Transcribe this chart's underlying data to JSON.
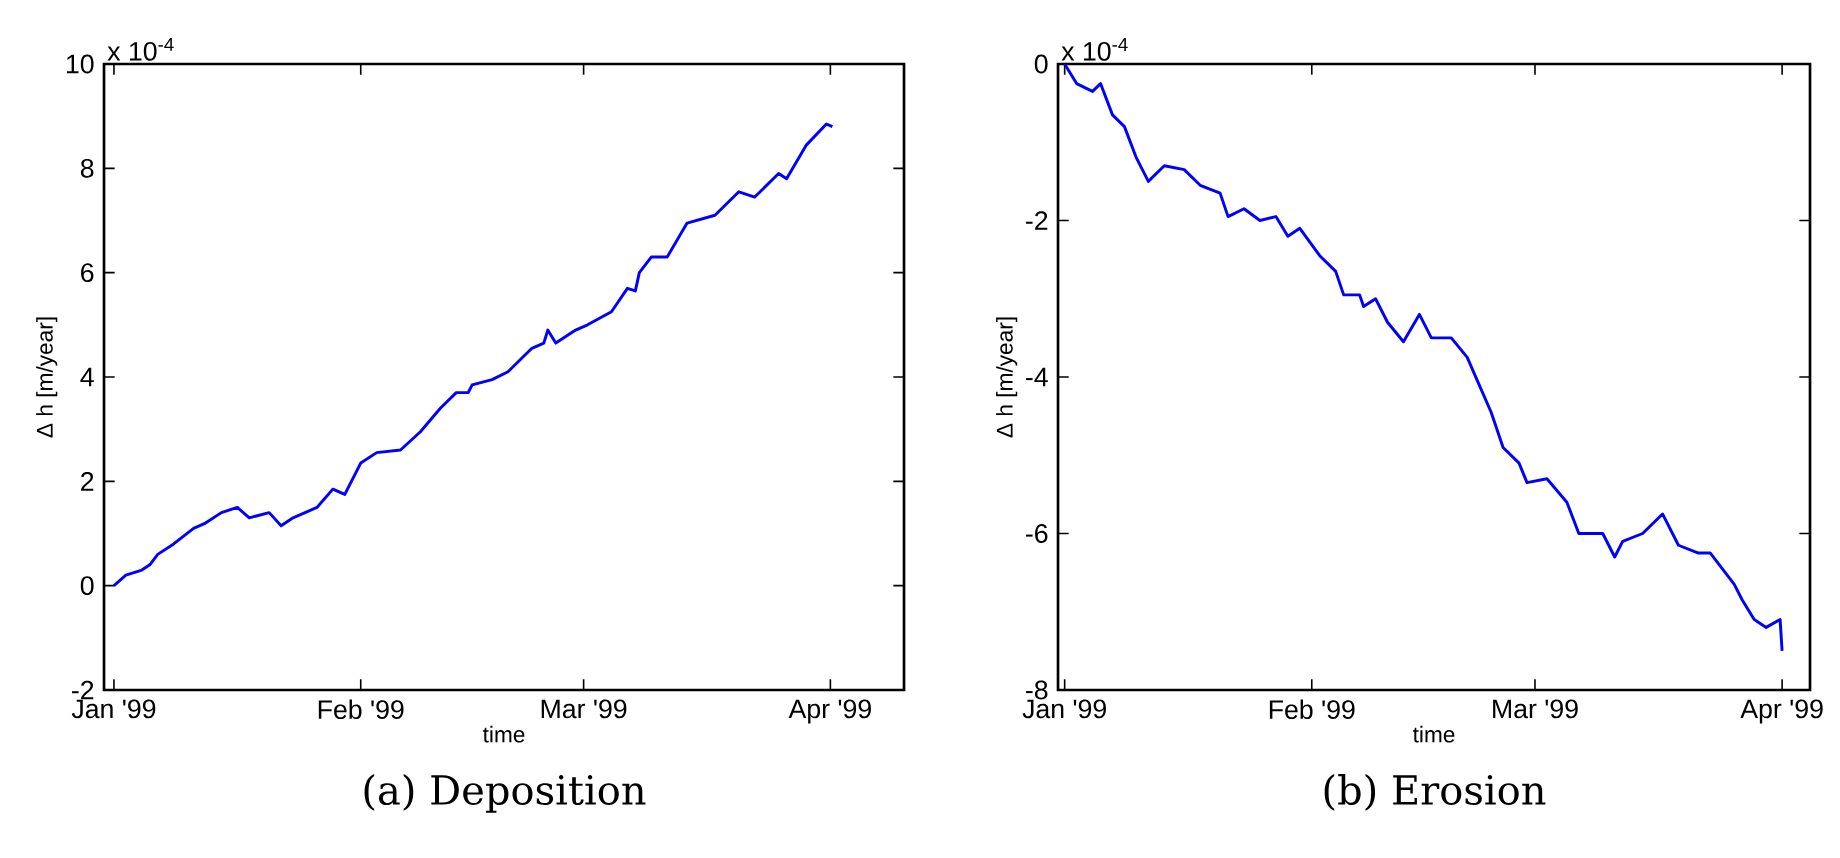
{
  "chart_data": [
    {
      "type": "line",
      "title": "(a) Deposition",
      "xlabel": "time",
      "ylabel": "Δ h [m/year]",
      "annotations": [
        "x 10$^{-4}$"
      ],
      "x": [
        "1999-01-01",
        "1999-01-02T12:00",
        "1999-01-04T12:00",
        "1999-01-05T12:00",
        "1999-01-06T12:00",
        "1999-01-08T12:00",
        "1999-01-11",
        "1999-01-12T12:00",
        "1999-01-14T12:00",
        "1999-01-16T12:00",
        "1999-01-18",
        "1999-01-20T12:00",
        "1999-01-22",
        "1999-01-23T12:00",
        "1999-01-26T12:00",
        "1999-01-28T12:00",
        "1999-01-30",
        "1999-02-01",
        "1999-02-03",
        "1999-02-06",
        "1999-02-08T12:00",
        "1999-02-11",
        "1999-02-13",
        "1999-02-14T12:00",
        "1999-02-15",
        "1999-02-17T12:00",
        "1999-02-19T12:00",
        "1999-02-22T12:00",
        "1999-02-24",
        "1999-02-24T12:00",
        "1999-02-25T12:00",
        "1999-02-28",
        "1999-03-01T12:00",
        "1999-03-04T12:00",
        "1999-03-06T12:00",
        "1999-03-07T12:00",
        "1999-03-08",
        "1999-03-09T12:00",
        "1999-03-11T12:00",
        "1999-03-14",
        "1999-03-17T12:00",
        "1999-03-20T12:00",
        "1999-03-22T12:00",
        "1999-03-25T12:00",
        "1999-03-26T12:00",
        "1999-03-29",
        "1999-03-31T12:00",
        "1999-04-01T06:00"
      ],
      "series": [
        {
          "color": "#0000ff",
          "values": [
            0,
            0.2,
            0.3,
            0.4,
            0.6,
            0.8,
            1.1,
            1.2,
            1.4,
            1.5,
            1.3,
            1.4,
            1.15,
            1.3,
            1.5,
            1.85,
            1.75,
            2.35,
            2.55,
            2.6,
            2.95,
            3.4,
            3.7,
            3.7,
            3.85,
            3.95,
            4.1,
            4.55,
            4.65,
            4.9,
            4.65,
            4.9,
            5.0,
            5.25,
            5.7,
            5.65,
            6.0,
            6.3,
            6.3,
            6.95,
            7.1,
            7.55,
            7.45,
            7.9,
            7.8,
            8.45,
            8.85,
            8.8
          ]
        }
      ],
      "xlim": [
        "1998-12-30T18:00",
        "1999-04-10T06:00"
      ],
      "xticks": [
        {
          "value": "1999-01-01",
          "label": "Jan '99"
        },
        {
          "value": "1999-02-01",
          "label": "Feb '99"
        },
        {
          "value": "1999-03-01",
          "label": "Mar '99"
        },
        {
          "value": "1999-04-01",
          "label": "Apr '99"
        }
      ],
      "ylim": [
        -2,
        10
      ],
      "yticks": [
        -2,
        0,
        2,
        4,
        6,
        8,
        10
      ],
      "grid": false
    },
    {
      "type": "line",
      "title": "(b) Erosion",
      "xlabel": "time",
      "ylabel": "Δ h [m/year]",
      "annotations": [
        "x 10$^{-4}$"
      ],
      "x": [
        "1999-01-01",
        "1999-01-02T12:00",
        "1999-01-03T12:00",
        "1999-01-04T12:00",
        "1999-01-05T12:00",
        "1999-01-07",
        "1999-01-08T12:00",
        "1999-01-10",
        "1999-01-11T12:00",
        "1999-01-13T12:00",
        "1999-01-16",
        "1999-01-18",
        "1999-01-20T12:00",
        "1999-01-21T12:00",
        "1999-01-23T12:00",
        "1999-01-25T12:00",
        "1999-01-27T12:00",
        "1999-01-29",
        "1999-01-30T12:00",
        "1999-02-02",
        "1999-02-04",
        "1999-02-05",
        "1999-02-07",
        "1999-02-07T12:00",
        "1999-02-09",
        "1999-02-10T12:00",
        "1999-02-12T12:00",
        "1999-02-14T12:00",
        "1999-02-16",
        "1999-02-18T12:00",
        "1999-02-20T12:00",
        "1999-02-22",
        "1999-02-23T12:00",
        "1999-02-25",
        "1999-02-27",
        "1999-02-28",
        "1999-03-02T12:00",
        "1999-03-05",
        "1999-03-06T12:00",
        "1999-03-09T12:00",
        "1999-03-11",
        "1999-03-12",
        "1999-03-14T12:00",
        "1999-03-17",
        "1999-03-19",
        "1999-03-21T12:00",
        "1999-03-23",
        "1999-03-26",
        "1999-03-27",
        "1999-03-28T12:00",
        "1999-03-30",
        "1999-03-31T18:00",
        "1999-04-01"
      ],
      "series": [
        {
          "color": "#0000ff",
          "values": [
            0,
            -0.25,
            -0.3,
            -0.35,
            -0.25,
            -0.65,
            -0.8,
            -1.2,
            -1.5,
            -1.3,
            -1.35,
            -1.55,
            -1.65,
            -1.95,
            -1.85,
            -2.0,
            -1.95,
            -2.2,
            -2.1,
            -2.45,
            -2.65,
            -2.95,
            -2.95,
            -3.1,
            -3.0,
            -3.3,
            -3.55,
            -3.2,
            -3.5,
            -3.5,
            -3.75,
            -4.1,
            -4.45,
            -4.9,
            -5.1,
            -5.35,
            -5.3,
            -5.6,
            -6.0,
            -6.0,
            -6.3,
            -6.1,
            -6.0,
            -5.75,
            -6.15,
            -6.25,
            -6.25,
            -6.65,
            -6.85,
            -7.1,
            -7.2,
            -7.1,
            -7.5
          ]
        }
      ],
      "xlim": [
        "1998-12-31T04:00",
        "1999-04-04T12:00"
      ],
      "xticks": [
        {
          "value": "1999-01-01",
          "label": "Jan '99"
        },
        {
          "value": "1999-02-01",
          "label": "Feb '99"
        },
        {
          "value": "1999-03-01",
          "label": "Mar '99"
        },
        {
          "value": "1999-04-01",
          "label": "Apr '99"
        }
      ],
      "ylim": [
        -8,
        0
      ],
      "yticks": [
        -8,
        -6,
        -4,
        -2,
        0
      ],
      "grid": false
    }
  ]
}
